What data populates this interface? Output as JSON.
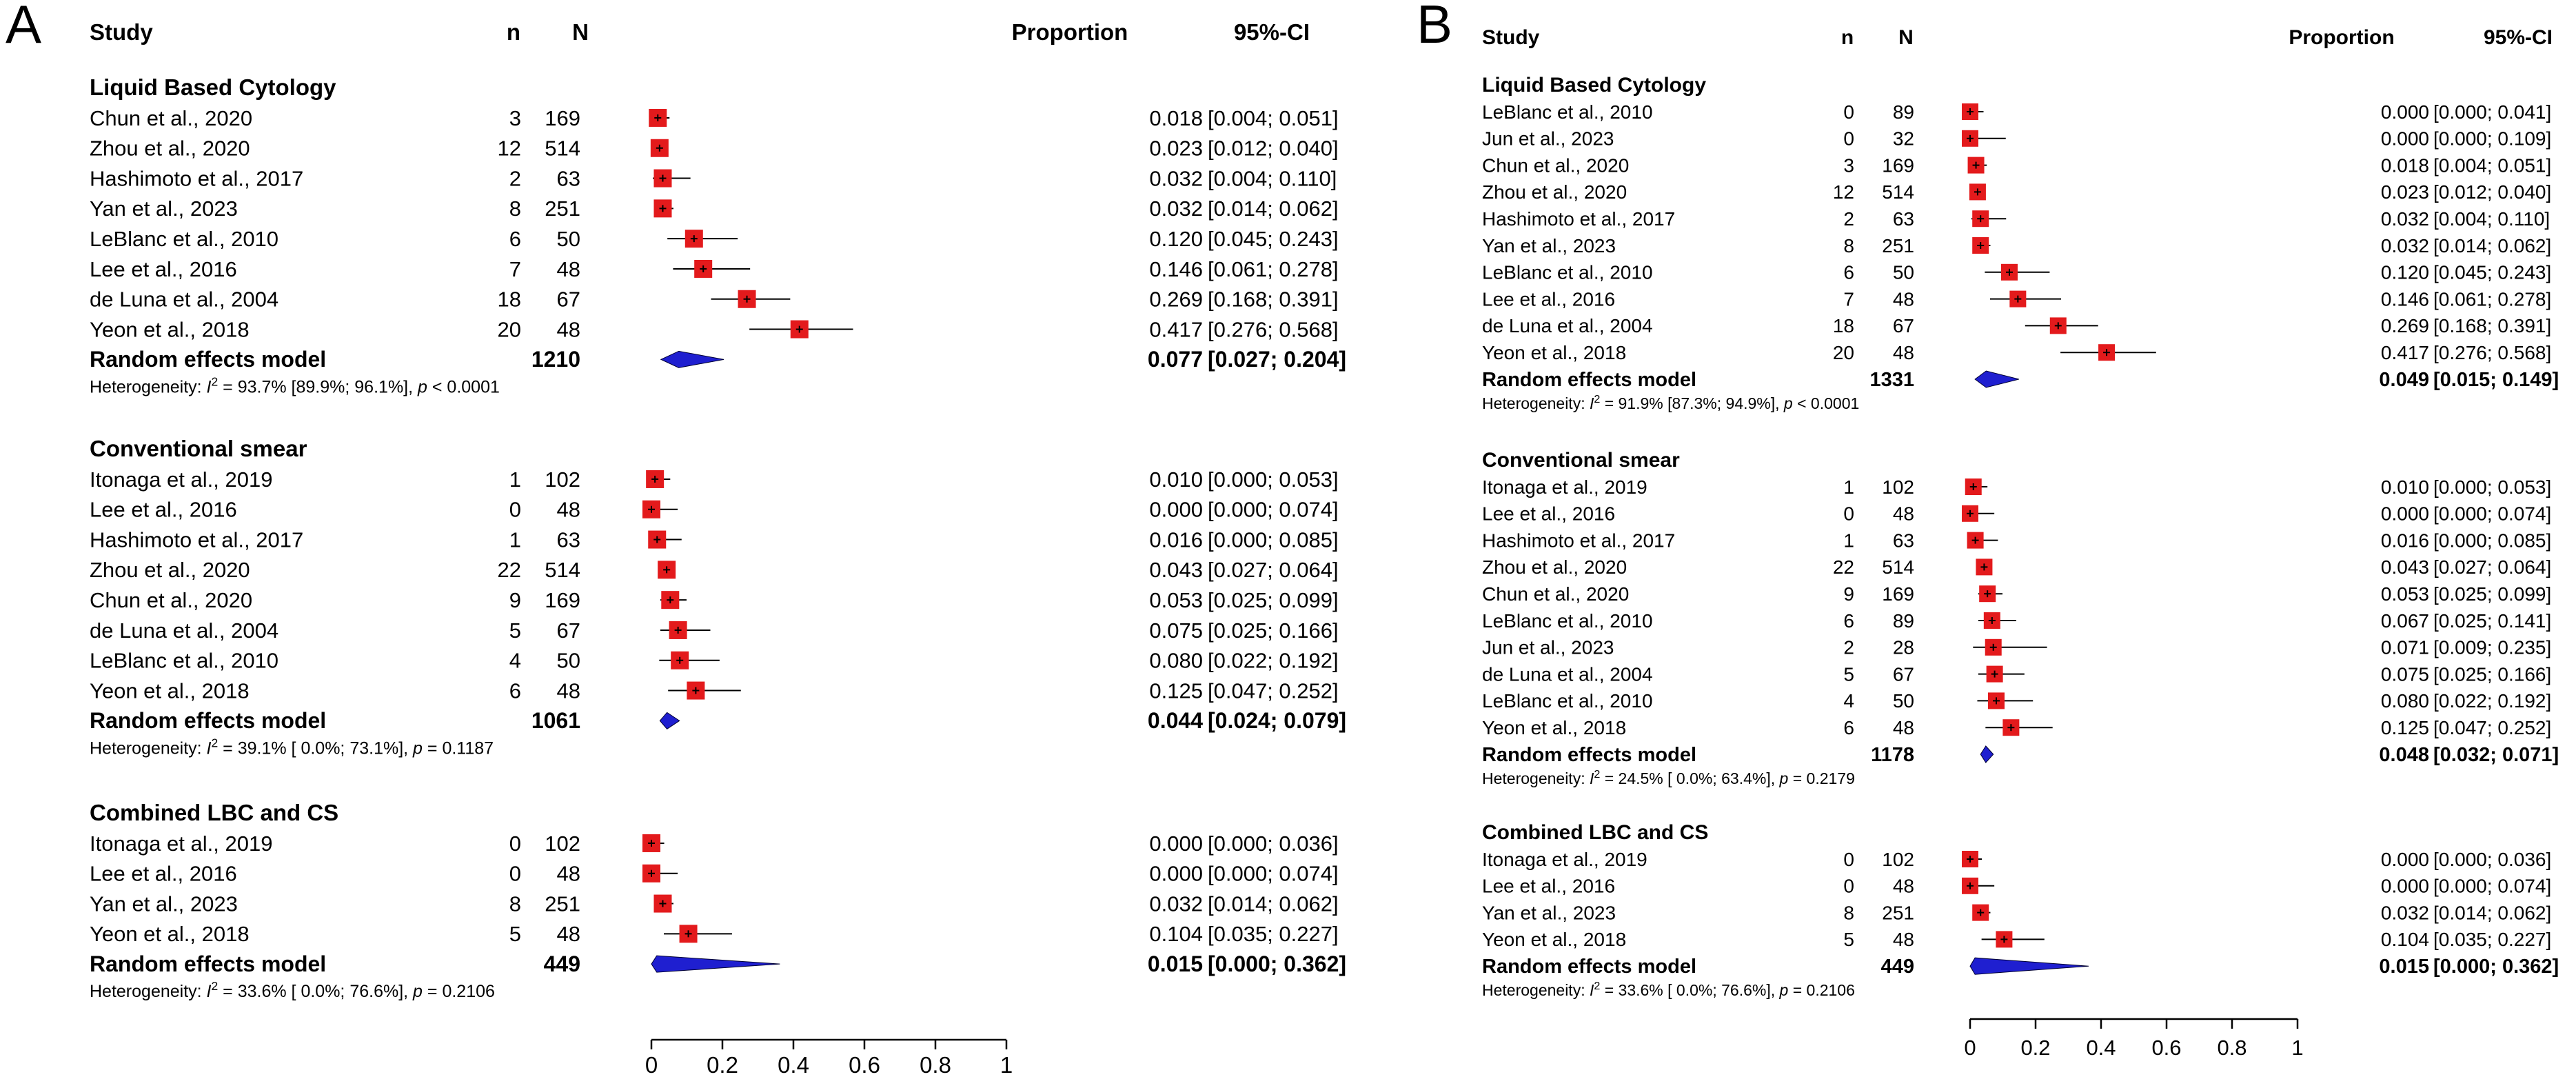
{
  "colors": {
    "square": "#e31a1c",
    "diamond": "#1f1fd0",
    "line": "#000000",
    "panel_label": "#1e6fa8"
  },
  "headers": {
    "study": "Study",
    "n": "n",
    "N": "N",
    "proportion": "Proportion",
    "ci": "95%-CI"
  },
  "chart_data": [
    {
      "type": "forest",
      "panel": "A",
      "xlim": [
        0,
        1
      ],
      "xticks": [
        "0",
        "0.2",
        "0.4",
        "0.6",
        "0.8",
        "1"
      ],
      "groups": [
        {
          "title": "Liquid Based Cytology",
          "studies": [
            {
              "name": "Chun et al., 2020",
              "n": "3",
              "N": "169",
              "p": 0.018,
              "lo": 0.004,
              "hi": 0.051,
              "pstr": "0.018",
              "ci": "[0.004; 0.051]"
            },
            {
              "name": "Zhou et al., 2020",
              "n": "12",
              "N": "514",
              "p": 0.023,
              "lo": 0.012,
              "hi": 0.04,
              "pstr": "0.023",
              "ci": "[0.012; 0.040]"
            },
            {
              "name": "Hashimoto et al., 2017",
              "n": "2",
              "N": "63",
              "p": 0.032,
              "lo": 0.004,
              "hi": 0.11,
              "pstr": "0.032",
              "ci": "[0.004; 0.110]"
            },
            {
              "name": "Yan et al., 2023",
              "n": "8",
              "N": "251",
              "p": 0.032,
              "lo": 0.014,
              "hi": 0.062,
              "pstr": "0.032",
              "ci": "[0.014; 0.062]"
            },
            {
              "name": "LeBlanc et al., 2010",
              "n": "6",
              "N": "50",
              "p": 0.12,
              "lo": 0.045,
              "hi": 0.243,
              "pstr": "0.120",
              "ci": "[0.045; 0.243]"
            },
            {
              "name": "Lee et al., 2016",
              "n": "7",
              "N": "48",
              "p": 0.146,
              "lo": 0.061,
              "hi": 0.278,
              "pstr": "0.146",
              "ci": "[0.061; 0.278]"
            },
            {
              "name": "de Luna et al., 2004",
              "n": "18",
              "N": "67",
              "p": 0.269,
              "lo": 0.168,
              "hi": 0.391,
              "pstr": "0.269",
              "ci": "[0.168; 0.391]"
            },
            {
              "name": "Yeon et al., 2018",
              "n": "20",
              "N": "48",
              "p": 0.417,
              "lo": 0.276,
              "hi": 0.568,
              "pstr": "0.417",
              "ci": "[0.276; 0.568]"
            }
          ],
          "model": {
            "label": "Random effects model",
            "total": "1210",
            "p": 0.077,
            "lo": 0.027,
            "hi": 0.204,
            "pstr": "0.077",
            "ci": "[0.027; 0.204]"
          },
          "het": {
            "prefix": "Heterogeneity: ",
            "i2": "I",
            "sup": "2",
            "rest": " = 93.7% [89.9%; 96.1%], ",
            "pl": "p",
            "pv": " < 0.0001"
          }
        },
        {
          "title": "Conventional smear",
          "studies": [
            {
              "name": "Itonaga et al., 2019",
              "n": "1",
              "N": "102",
              "p": 0.01,
              "lo": 0.0,
              "hi": 0.053,
              "pstr": "0.010",
              "ci": "[0.000; 0.053]"
            },
            {
              "name": "Lee et al., 2016",
              "n": "0",
              "N": "48",
              "p": 0.0,
              "lo": 0.0,
              "hi": 0.074,
              "pstr": "0.000",
              "ci": "[0.000; 0.074]"
            },
            {
              "name": "Hashimoto et al., 2017",
              "n": "1",
              "N": "63",
              "p": 0.016,
              "lo": 0.0,
              "hi": 0.085,
              "pstr": "0.016",
              "ci": "[0.000; 0.085]"
            },
            {
              "name": "Zhou et al., 2020",
              "n": "22",
              "N": "514",
              "p": 0.043,
              "lo": 0.027,
              "hi": 0.064,
              "pstr": "0.043",
              "ci": "[0.027; 0.064]"
            },
            {
              "name": "Chun et al., 2020",
              "n": "9",
              "N": "169",
              "p": 0.053,
              "lo": 0.025,
              "hi": 0.099,
              "pstr": "0.053",
              "ci": "[0.025; 0.099]"
            },
            {
              "name": "de Luna et al., 2004",
              "n": "5",
              "N": "67",
              "p": 0.075,
              "lo": 0.025,
              "hi": 0.166,
              "pstr": "0.075",
              "ci": "[0.025; 0.166]"
            },
            {
              "name": "LeBlanc et al., 2010",
              "n": "4",
              "N": "50",
              "p": 0.08,
              "lo": 0.022,
              "hi": 0.192,
              "pstr": "0.080",
              "ci": "[0.022; 0.192]"
            },
            {
              "name": "Yeon et al., 2018",
              "n": "6",
              "N": "48",
              "p": 0.125,
              "lo": 0.047,
              "hi": 0.252,
              "pstr": "0.125",
              "ci": "[0.047; 0.252]"
            }
          ],
          "model": {
            "label": "Random effects model",
            "total": "1061",
            "p": 0.044,
            "lo": 0.024,
            "hi": 0.079,
            "pstr": "0.044",
            "ci": "[0.024; 0.079]"
          },
          "het": {
            "prefix": "Heterogeneity: ",
            "i2": "I",
            "sup": "2",
            "rest": " = 39.1% [ 0.0%; 73.1%], ",
            "pl": "p",
            "pv": " = 0.1187"
          }
        },
        {
          "title": "Combined LBC and CS",
          "studies": [
            {
              "name": "Itonaga et al., 2019",
              "n": "0",
              "N": "102",
              "p": 0.0,
              "lo": 0.0,
              "hi": 0.036,
              "pstr": "0.000",
              "ci": "[0.000; 0.036]"
            },
            {
              "name": "Lee et al., 2016",
              "n": "0",
              "N": "48",
              "p": 0.0,
              "lo": 0.0,
              "hi": 0.074,
              "pstr": "0.000",
              "ci": "[0.000; 0.074]"
            },
            {
              "name": "Yan et al., 2023",
              "n": "8",
              "N": "251",
              "p": 0.032,
              "lo": 0.014,
              "hi": 0.062,
              "pstr": "0.032",
              "ci": "[0.014; 0.062]"
            },
            {
              "name": "Yeon et al., 2018",
              "n": "5",
              "N": "48",
              "p": 0.104,
              "lo": 0.035,
              "hi": 0.227,
              "pstr": "0.104",
              "ci": "[0.035; 0.227]"
            }
          ],
          "model": {
            "label": "Random effects model",
            "total": "449",
            "p": 0.015,
            "lo": 0.0,
            "hi": 0.362,
            "pstr": "0.015",
            "ci": "[0.000; 0.362]"
          },
          "het": {
            "prefix": "Heterogeneity: ",
            "i2": "I",
            "sup": "2",
            "rest": " = 33.6% [ 0.0%; 76.6%], ",
            "pl": "p",
            "pv": " = 0.2106"
          }
        }
      ]
    },
    {
      "type": "forest",
      "panel": "B",
      "xlim": [
        0,
        1
      ],
      "xticks": [
        "0",
        "0.2",
        "0.4",
        "0.6",
        "0.8",
        "1"
      ],
      "groups": [
        {
          "title": "Liquid Based Cytology",
          "studies": [
            {
              "name": "LeBlanc et al., 2010",
              "n": "0",
              "N": "89",
              "p": 0.0,
              "lo": 0.0,
              "hi": 0.041,
              "pstr": "0.000",
              "ci": "[0.000; 0.041]"
            },
            {
              "name": "Jun et al., 2023",
              "n": "0",
              "N": "32",
              "p": 0.0,
              "lo": 0.0,
              "hi": 0.109,
              "pstr": "0.000",
              "ci": "[0.000; 0.109]"
            },
            {
              "name": "Chun et al., 2020",
              "n": "3",
              "N": "169",
              "p": 0.018,
              "lo": 0.004,
              "hi": 0.051,
              "pstr": "0.018",
              "ci": "[0.004; 0.051]"
            },
            {
              "name": "Zhou et al., 2020",
              "n": "12",
              "N": "514",
              "p": 0.023,
              "lo": 0.012,
              "hi": 0.04,
              "pstr": "0.023",
              "ci": "[0.012; 0.040]"
            },
            {
              "name": "Hashimoto et al., 2017",
              "n": "2",
              "N": "63",
              "p": 0.032,
              "lo": 0.004,
              "hi": 0.11,
              "pstr": "0.032",
              "ci": "[0.004; 0.110]"
            },
            {
              "name": "Yan et al., 2023",
              "n": "8",
              "N": "251",
              "p": 0.032,
              "lo": 0.014,
              "hi": 0.062,
              "pstr": "0.032",
              "ci": "[0.014; 0.062]"
            },
            {
              "name": "LeBlanc et al., 2010",
              "n": "6",
              "N": "50",
              "p": 0.12,
              "lo": 0.045,
              "hi": 0.243,
              "pstr": "0.120",
              "ci": "[0.045; 0.243]"
            },
            {
              "name": "Lee et al., 2016",
              "n": "7",
              "N": "48",
              "p": 0.146,
              "lo": 0.061,
              "hi": 0.278,
              "pstr": "0.146",
              "ci": "[0.061; 0.278]"
            },
            {
              "name": "de Luna et al., 2004",
              "n": "18",
              "N": "67",
              "p": 0.269,
              "lo": 0.168,
              "hi": 0.391,
              "pstr": "0.269",
              "ci": "[0.168; 0.391]"
            },
            {
              "name": "Yeon et al., 2018",
              "n": "20",
              "N": "48",
              "p": 0.417,
              "lo": 0.276,
              "hi": 0.568,
              "pstr": "0.417",
              "ci": "[0.276; 0.568]"
            }
          ],
          "model": {
            "label": "Random effects model",
            "total": "1331",
            "p": 0.049,
            "lo": 0.015,
            "hi": 0.149,
            "pstr": "0.049",
            "ci": "[0.015; 0.149]"
          },
          "het": {
            "prefix": "Heterogeneity: ",
            "i2": "I",
            "sup": "2",
            "rest": " = 91.9% [87.3%; 94.9%], ",
            "pl": "p",
            "pv": " < 0.0001"
          }
        },
        {
          "title": "Conventional smear",
          "studies": [
            {
              "name": "Itonaga et al., 2019",
              "n": "1",
              "N": "102",
              "p": 0.01,
              "lo": 0.0,
              "hi": 0.053,
              "pstr": "0.010",
              "ci": "[0.000; 0.053]"
            },
            {
              "name": "Lee et al., 2016",
              "n": "0",
              "N": "48",
              "p": 0.0,
              "lo": 0.0,
              "hi": 0.074,
              "pstr": "0.000",
              "ci": "[0.000; 0.074]"
            },
            {
              "name": "Hashimoto et al., 2017",
              "n": "1",
              "N": "63",
              "p": 0.016,
              "lo": 0.0,
              "hi": 0.085,
              "pstr": "0.016",
              "ci": "[0.000; 0.085]"
            },
            {
              "name": "Zhou et al., 2020",
              "n": "22",
              "N": "514",
              "p": 0.043,
              "lo": 0.027,
              "hi": 0.064,
              "pstr": "0.043",
              "ci": "[0.027; 0.064]"
            },
            {
              "name": "Chun et al., 2020",
              "n": "9",
              "N": "169",
              "p": 0.053,
              "lo": 0.025,
              "hi": 0.099,
              "pstr": "0.053",
              "ci": "[0.025; 0.099]"
            },
            {
              "name": "LeBlanc et al., 2010",
              "n": "6",
              "N": "89",
              "p": 0.067,
              "lo": 0.025,
              "hi": 0.141,
              "pstr": "0.067",
              "ci": "[0.025; 0.141]"
            },
            {
              "name": "Jun et al., 2023",
              "n": "2",
              "N": "28",
              "p": 0.071,
              "lo": 0.009,
              "hi": 0.235,
              "pstr": "0.071",
              "ci": "[0.009; 0.235]"
            },
            {
              "name": "de Luna et al., 2004",
              "n": "5",
              "N": "67",
              "p": 0.075,
              "lo": 0.025,
              "hi": 0.166,
              "pstr": "0.075",
              "ci": "[0.025; 0.166]"
            },
            {
              "name": "LeBlanc et al., 2010",
              "n": "4",
              "N": "50",
              "p": 0.08,
              "lo": 0.022,
              "hi": 0.192,
              "pstr": "0.080",
              "ci": "[0.022; 0.192]"
            },
            {
              "name": "Yeon et al., 2018",
              "n": "6",
              "N": "48",
              "p": 0.125,
              "lo": 0.047,
              "hi": 0.252,
              "pstr": "0.125",
              "ci": "[0.047; 0.252]"
            }
          ],
          "model": {
            "label": "Random effects model",
            "total": "1178",
            "p": 0.048,
            "lo": 0.032,
            "hi": 0.071,
            "pstr": "0.048",
            "ci": "[0.032; 0.071]"
          },
          "het": {
            "prefix": "Heterogeneity: ",
            "i2": "I",
            "sup": "2",
            "rest": " = 24.5% [ 0.0%; 63.4%], ",
            "pl": "p",
            "pv": " = 0.2179"
          }
        },
        {
          "title": "Combined LBC and CS",
          "studies": [
            {
              "name": "Itonaga et al., 2019",
              "n": "0",
              "N": "102",
              "p": 0.0,
              "lo": 0.0,
              "hi": 0.036,
              "pstr": "0.000",
              "ci": "[0.000; 0.036]"
            },
            {
              "name": "Lee et al., 2016",
              "n": "0",
              "N": "48",
              "p": 0.0,
              "lo": 0.0,
              "hi": 0.074,
              "pstr": "0.000",
              "ci": "[0.000; 0.074]"
            },
            {
              "name": "Yan et al., 2023",
              "n": "8",
              "N": "251",
              "p": 0.032,
              "lo": 0.014,
              "hi": 0.062,
              "pstr": "0.032",
              "ci": "[0.014; 0.062]"
            },
            {
              "name": "Yeon et al., 2018",
              "n": "5",
              "N": "48",
              "p": 0.104,
              "lo": 0.035,
              "hi": 0.227,
              "pstr": "0.104",
              "ci": "[0.035; 0.227]"
            }
          ],
          "model": {
            "label": "Random effects model",
            "total": "449",
            "p": 0.015,
            "lo": 0.0,
            "hi": 0.362,
            "pstr": "0.015",
            "ci": "[0.000; 0.362]"
          },
          "het": {
            "prefix": "Heterogeneity: ",
            "i2": "I",
            "sup": "2",
            "rest": " = 33.6% [ 0.0%; 76.6%], ",
            "pl": "p",
            "pv": " = 0.2106"
          }
        }
      ]
    }
  ]
}
